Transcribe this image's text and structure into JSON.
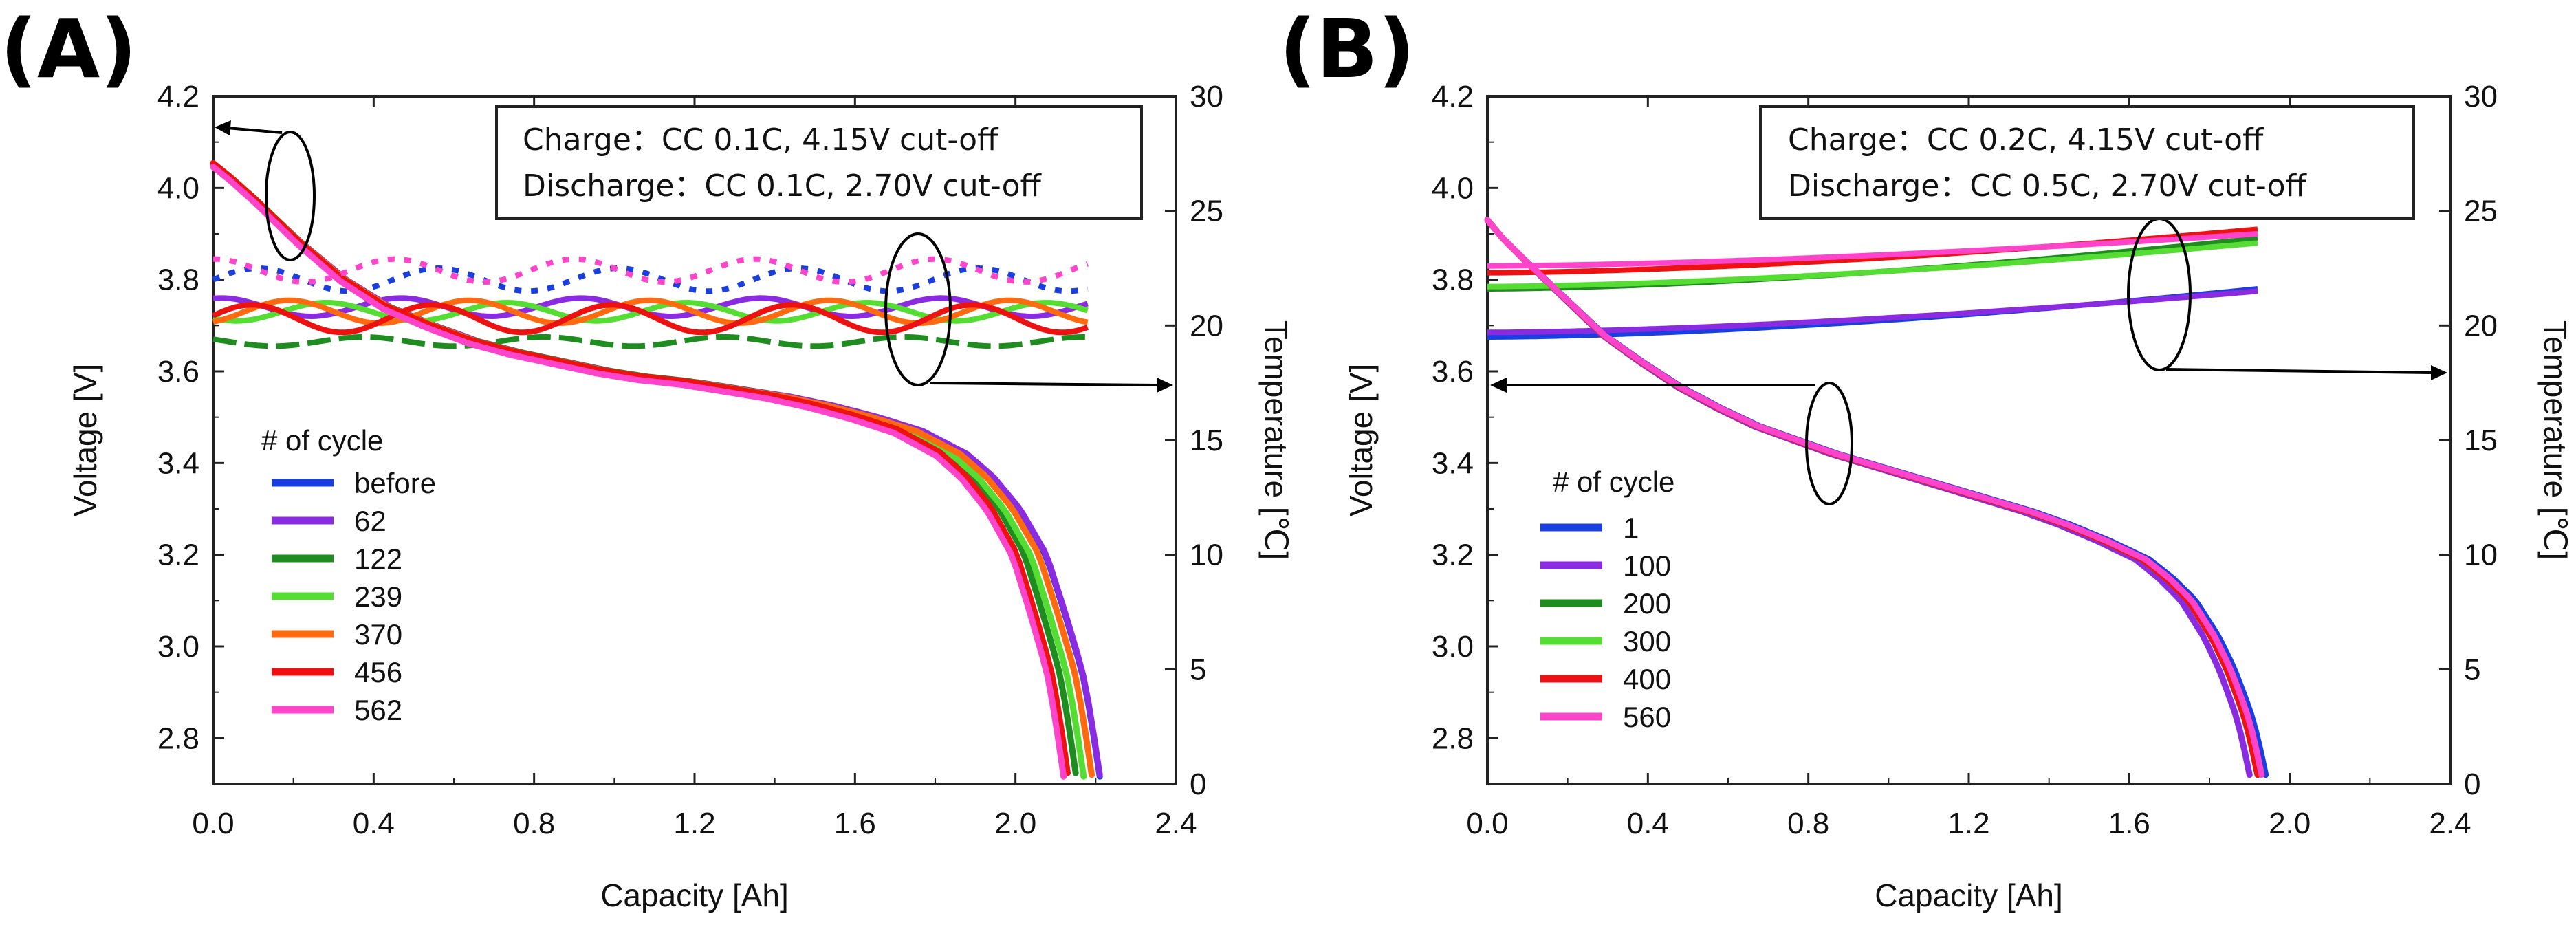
{
  "chart_data": [
    {
      "type": "line",
      "panel_label": "(A)",
      "xlabel": "Capacity [Ah]",
      "ylabel": "Voltage [V]",
      "y2label": "Temperature [℃]",
      "xlim": [
        0,
        2.4
      ],
      "ylim": [
        2.7,
        4.2
      ],
      "y2lim": [
        0,
        30
      ],
      "x_ticks": [
        "0.0",
        "0.4",
        "0.8",
        "1.2",
        "1.6",
        "2.0",
        "2.4"
      ],
      "y_ticks": [
        "2.8",
        "3.0",
        "3.2",
        "3.4",
        "3.6",
        "3.8",
        "4.0",
        "4.2"
      ],
      "y2_ticks": [
        "0",
        "5",
        "10",
        "15",
        "20",
        "25",
        "30"
      ],
      "conditions": [
        "Charge：CC 0.1C, 4.15V cut-off",
        "Discharge：CC 0.1C, 2.70V cut-off"
      ],
      "legend_title": "# of cycle",
      "series": [
        {
          "name": "before",
          "color": "#1a3fe0",
          "end_capacity": 2.21,
          "temp_base": 22.0,
          "temp_amp": 0.5,
          "temp_style": "dotted"
        },
        {
          "name": "62",
          "color": "#8a2be2",
          "end_capacity": 2.21,
          "temp_base": 20.8,
          "temp_amp": 0.4,
          "temp_style": "solid"
        },
        {
          "name": "122",
          "color": "#1e8c1e",
          "end_capacity": 2.15,
          "temp_base": 19.3,
          "temp_amp": 0.2,
          "temp_style": "dashed"
        },
        {
          "name": "239",
          "color": "#55dd33",
          "end_capacity": 2.17,
          "temp_base": 20.6,
          "temp_amp": 0.4,
          "temp_style": "solid"
        },
        {
          "name": "370",
          "color": "#ff6a10",
          "end_capacity": 2.19,
          "temp_base": 20.6,
          "temp_amp": 0.5,
          "temp_style": "solid"
        },
        {
          "name": "456",
          "color": "#ee1111",
          "end_capacity": 2.13,
          "temp_base": 20.3,
          "temp_amp": 0.6,
          "temp_style": "solid"
        },
        {
          "name": "562",
          "color": "#ff44cc",
          "end_capacity": 2.12,
          "temp_base": 22.4,
          "temp_amp": 0.5,
          "temp_style": "dotted"
        }
      ],
      "voltage_profile": {
        "q_fraction": [
          0,
          0.02,
          0.05,
          0.1,
          0.15,
          0.2,
          0.25,
          0.3,
          0.35,
          0.4,
          0.45,
          0.5,
          0.55,
          0.6,
          0.65,
          0.7,
          0.75,
          0.8,
          0.85,
          0.88,
          0.91,
          0.94,
          0.96,
          0.98,
          0.99,
          1.0
        ],
        "voltage": [
          4.05,
          4.02,
          3.97,
          3.88,
          3.8,
          3.74,
          3.7,
          3.665,
          3.64,
          3.62,
          3.6,
          3.585,
          3.575,
          3.56,
          3.545,
          3.525,
          3.5,
          3.47,
          3.42,
          3.37,
          3.3,
          3.2,
          3.08,
          2.95,
          2.85,
          2.72
        ]
      }
    },
    {
      "type": "line",
      "panel_label": "(B)",
      "xlabel": "Capacity [Ah]",
      "ylabel": "Voltage [V]",
      "y2label": "Temperature [℃]",
      "xlim": [
        0,
        2.4
      ],
      "ylim": [
        2.7,
        4.2
      ],
      "y2lim": [
        0,
        30
      ],
      "x_ticks": [
        "0.0",
        "0.4",
        "0.8",
        "1.2",
        "1.6",
        "2.0",
        "2.4"
      ],
      "y_ticks": [
        "2.8",
        "3.0",
        "3.2",
        "3.4",
        "3.6",
        "3.8",
        "4.0",
        "4.2"
      ],
      "y2_ticks": [
        "0",
        "5",
        "10",
        "15",
        "20",
        "25",
        "30"
      ],
      "conditions": [
        "Charge：CC 0.2C, 4.15V cut-off",
        "Discharge：CC 0.5C, 2.70V cut-off"
      ],
      "legend_title": "# of cycle",
      "series": [
        {
          "name": "1",
          "color": "#1a3fe0",
          "end_capacity": 1.94,
          "temp_start": 19.5,
          "temp_end": 21.6
        },
        {
          "name": "100",
          "color": "#8a2be2",
          "end_capacity": 1.9,
          "temp_start": 19.7,
          "temp_end": 21.5
        },
        {
          "name": "200",
          "color": "#1e8c1e",
          "end_capacity": 1.92,
          "temp_start": 21.6,
          "temp_end": 23.8
        },
        {
          "name": "300",
          "color": "#55dd33",
          "end_capacity": 1.92,
          "temp_start": 21.7,
          "temp_end": 23.6
        },
        {
          "name": "400",
          "color": "#ee1111",
          "end_capacity": 1.92,
          "temp_start": 22.3,
          "temp_end": 24.2
        },
        {
          "name": "560",
          "color": "#ff44cc",
          "end_capacity": 1.93,
          "temp_start": 22.6,
          "temp_end": 24.0
        }
      ],
      "voltage_profile": {
        "q_fraction": [
          0,
          0.02,
          0.05,
          0.1,
          0.15,
          0.2,
          0.25,
          0.3,
          0.35,
          0.4,
          0.45,
          0.5,
          0.55,
          0.6,
          0.65,
          0.7,
          0.75,
          0.8,
          0.85,
          0.88,
          0.91,
          0.94,
          0.96,
          0.98,
          0.99,
          1.0
        ],
        "voltage": [
          3.93,
          3.89,
          3.84,
          3.76,
          3.68,
          3.62,
          3.565,
          3.52,
          3.48,
          3.45,
          3.42,
          3.395,
          3.37,
          3.345,
          3.32,
          3.295,
          3.265,
          3.23,
          3.19,
          3.15,
          3.1,
          3.02,
          2.95,
          2.86,
          2.8,
          2.72
        ]
      }
    }
  ]
}
